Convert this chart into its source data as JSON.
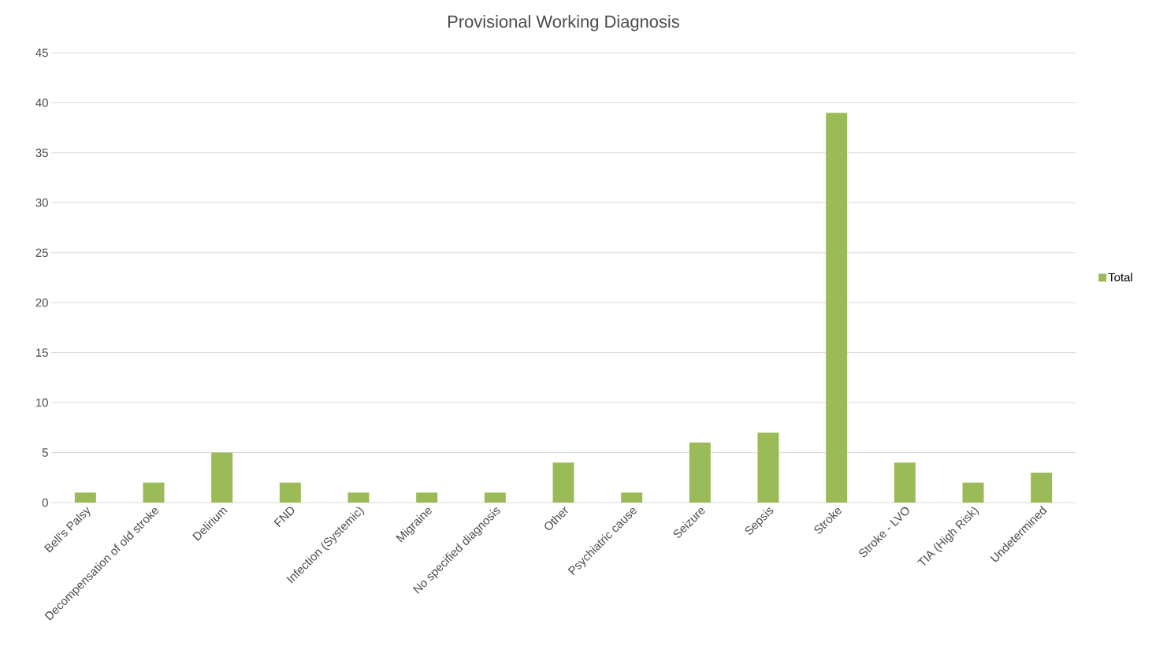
{
  "chart_data": {
    "type": "bar",
    "title": "Provisional Working Diagnosis",
    "categories": [
      "Bell's Palsy",
      "Decompensation of old stroke",
      "Delirium",
      "FND",
      "Infection (Systemic)",
      "Migraine",
      "No specified diagnosis",
      "Other",
      "Psychiatric cause",
      "Seizure",
      "Sepsis",
      "Stroke",
      "Stroke - LVO",
      "TIA (High Risk)",
      "Undetermined"
    ],
    "series": [
      {
        "name": "Total",
        "color": "#9bbb59",
        "values": [
          1,
          2,
          5,
          2,
          1,
          1,
          1,
          4,
          1,
          6,
          7,
          39,
          4,
          2,
          3
        ]
      }
    ],
    "ylim": [
      0,
      45
    ],
    "yticks": [
      0,
      5,
      10,
      15,
      20,
      25,
      30,
      35,
      40,
      45
    ],
    "grid": "y",
    "legend": "right"
  }
}
